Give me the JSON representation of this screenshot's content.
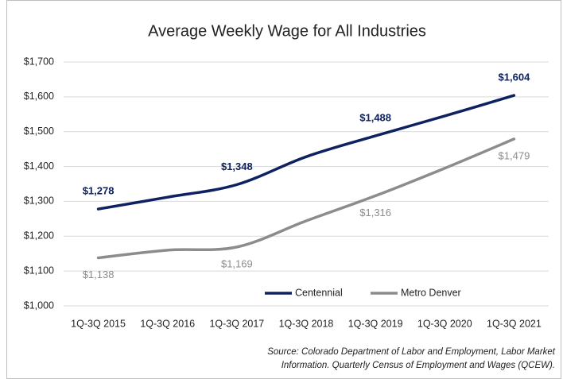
{
  "chart_data": {
    "type": "line",
    "title": "Average Weekly Wage for All Industries",
    "categories": [
      "1Q-3Q 2015",
      "1Q-3Q 2016",
      "1Q-3Q 2017",
      "1Q-3Q 2018",
      "1Q-3Q 2019",
      "1Q-3Q 2020",
      "1Q-3Q 2021"
    ],
    "series": [
      {
        "name": "Centennial",
        "color": "#0e2160",
        "values": [
          1278,
          1312,
          1348,
          1428,
          1488,
          1545,
          1604
        ],
        "value_labels": [
          "$1,278",
          null,
          "$1,348",
          null,
          "$1,488",
          null,
          "$1,604"
        ]
      },
      {
        "name": "Metro Denver",
        "color": "#8c8c8c",
        "values": [
          1138,
          1160,
          1169,
          1244,
          1316,
          1395,
          1479
        ],
        "value_labels": [
          "$1,138",
          null,
          "$1,169",
          null,
          "$1,316",
          null,
          "$1,479"
        ]
      }
    ],
    "ylim": [
      1000,
      1700
    ],
    "yticks": [
      {
        "value": 1000,
        "label": "$1,000"
      },
      {
        "value": 1100,
        "label": "$1,100"
      },
      {
        "value": 1200,
        "label": "$1,200"
      },
      {
        "value": 1300,
        "label": "$1,300"
      },
      {
        "value": 1400,
        "label": "$1,400"
      },
      {
        "value": 1500,
        "label": "$1,500"
      },
      {
        "value": 1600,
        "label": "$1,600"
      },
      {
        "value": 1700,
        "label": "$1,700"
      }
    ],
    "grid": true,
    "legend": "bottom",
    "source": [
      "Source: Colorado Department of Labor and Employment, Labor Market",
      "Information. Quarterly Census of Employment and Wages (QCEW)."
    ]
  }
}
